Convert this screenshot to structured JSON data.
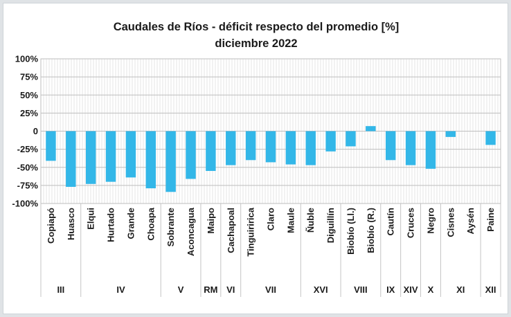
{
  "chart_data": {
    "type": "bar",
    "title": "Caudales de Ríos - déficit  respecto del promedio [%]",
    "subtitle": "diciembre 2022",
    "xlabel": "",
    "ylabel": "",
    "ylim": [
      -100,
      100
    ],
    "yticks": [
      100,
      75,
      50,
      25,
      0,
      -25,
      -50,
      -75,
      -100
    ],
    "ytick_labels": [
      "100%",
      "75%",
      "50%",
      "25%",
      "0",
      "-25%",
      "-50%",
      "-75%",
      "-100%"
    ],
    "grid": true,
    "bar_color": "#33b7e8",
    "categories": [
      "Copiapó",
      "Huasco",
      "Elqui",
      "Hurtado",
      "Grande",
      "Choapa",
      "Sobrante",
      "Aconcagua",
      "Maipo",
      "Cachapoal",
      "Tinguiririca",
      "Claro",
      "Maule",
      "Ñuble",
      "Diguillín",
      "Biobío (Ll.)",
      "Biobío (R.)",
      "Cautín",
      "Cruces",
      "Negro",
      "Cisnes",
      "Aysén",
      "Paine"
    ],
    "values": [
      -41,
      -77,
      -73,
      -70,
      -64,
      -79,
      -84,
      -66,
      -55,
      -47,
      -40,
      -43,
      -46,
      -47,
      -28,
      -21,
      7,
      -40,
      -47,
      -52,
      -8,
      0,
      -19
    ],
    "regions": [
      {
        "label": "III",
        "start": 0,
        "end": 1
      },
      {
        "label": "IV",
        "start": 2,
        "end": 5
      },
      {
        "label": "V",
        "start": 6,
        "end": 7
      },
      {
        "label": "RM",
        "start": 8,
        "end": 8
      },
      {
        "label": "VI",
        "start": 9,
        "end": 9
      },
      {
        "label": "VII",
        "start": 10,
        "end": 12
      },
      {
        "label": "XVI",
        "start": 13,
        "end": 14
      },
      {
        "label": "VIII",
        "start": 15,
        "end": 16
      },
      {
        "label": "IX",
        "start": 17,
        "end": 17
      },
      {
        "label": "XIV",
        "start": 18,
        "end": 18
      },
      {
        "label": "X",
        "start": 19,
        "end": 19
      },
      {
        "label": "XI",
        "start": 20,
        "end": 21
      },
      {
        "label": "XII",
        "start": 22,
        "end": 22
      }
    ]
  }
}
